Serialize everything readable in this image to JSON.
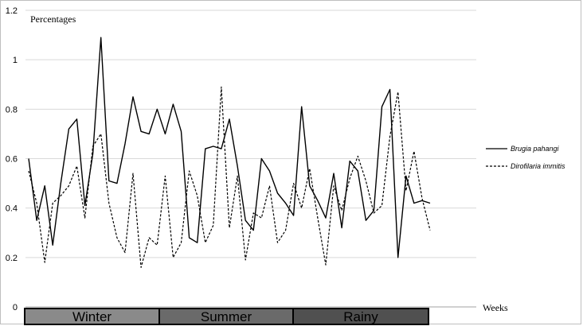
{
  "chart_data": {
    "type": "line",
    "ylabel": "Percentages",
    "xlabel": "Weeks",
    "ylim": [
      0,
      1.2
    ],
    "yticks": [
      "0",
      "0.2",
      "0.4",
      "0.6",
      "0.8",
      "1",
      "1.2"
    ],
    "grid": true,
    "legend_position": "right",
    "seasons": [
      {
        "label": "Winter",
        "color": "#8a8a8a"
      },
      {
        "label": "Summer",
        "color": "#6a6a6a"
      },
      {
        "label": "Rainy",
        "color": "#505050"
      }
    ],
    "series": [
      {
        "name": "Brugia pahangi",
        "style": "solid",
        "values": [
          0.6,
          0.35,
          0.49,
          0.25,
          0.5,
          0.72,
          0.76,
          0.41,
          0.62,
          1.09,
          0.51,
          0.5,
          0.66,
          0.85,
          0.71,
          0.7,
          0.8,
          0.7,
          0.82,
          0.71,
          0.28,
          0.26,
          0.64,
          0.65,
          0.64,
          0.76,
          0.57,
          0.35,
          0.31,
          0.6,
          0.55,
          0.46,
          0.42,
          0.37,
          0.81,
          0.49,
          0.43,
          0.36,
          0.54,
          0.32,
          0.59,
          0.55,
          0.35,
          0.39,
          0.81,
          0.88,
          0.2,
          0.53,
          0.42,
          0.43,
          0.42
        ]
      },
      {
        "name": "Dirofilaria immitis",
        "style": "dashed",
        "values": [
          0.55,
          0.42,
          0.18,
          0.42,
          0.45,
          0.49,
          0.57,
          0.36,
          0.65,
          0.7,
          0.42,
          0.28,
          0.22,
          0.54,
          0.16,
          0.28,
          0.25,
          0.53,
          0.2,
          0.26,
          0.55,
          0.45,
          0.26,
          0.33,
          0.89,
          0.32,
          0.53,
          0.19,
          0.38,
          0.36,
          0.49,
          0.26,
          0.31,
          0.5,
          0.4,
          0.56,
          0.36,
          0.17,
          0.49,
          0.39,
          0.52,
          0.61,
          0.51,
          0.38,
          0.41,
          0.69,
          0.87,
          0.47,
          0.63,
          0.44,
          0.31
        ]
      }
    ]
  }
}
